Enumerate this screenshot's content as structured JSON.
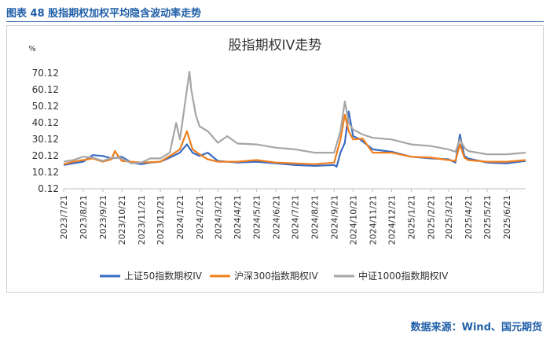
{
  "figure_caption": "图表 48  股指期权加权平均隐含波动率走势",
  "source_note": "数据来源：Wind、国元期货",
  "colors": {
    "caption": "#1f5fa8",
    "frame": "#d0d0d0"
  },
  "chart_data": {
    "type": "line",
    "title": "股指期权IV走势",
    "ylabel": "%",
    "xlabel": "",
    "yticks": [
      "0.12",
      "10.12",
      "20.12",
      "30.12",
      "40.12",
      "50.12",
      "60.12",
      "70.12"
    ],
    "ylim": [
      0.12,
      70.12
    ],
    "xticks": [
      "2023/7/21",
      "2023/8/21",
      "2023/9/21",
      "2023/10/21",
      "2023/11/21",
      "2023/12/21",
      "2024/1/21",
      "2024/2/21",
      "2024/3/21",
      "2024/4/21",
      "2024/5/21",
      "2024/6/21",
      "2024/7/21",
      "2024/8/21",
      "2024/9/21",
      "2024/10/21",
      "2024/11/21",
      "2024/12/21",
      "2025/1/21",
      "2025/2/21",
      "2025/3/21",
      "2025/4/21",
      "2025/5/21",
      "2025/6/21"
    ],
    "grid": false,
    "legend_position": "bottom",
    "series": [
      {
        "name": "上证50指数期权IV",
        "color": "#3a6bc4",
        "points": [
          [
            "2023/7/21",
            14.5
          ],
          [
            "2023/8/5",
            15.5
          ],
          [
            "2023/8/21",
            16.5
          ],
          [
            "2023/9/5",
            20.5
          ],
          [
            "2023/9/21",
            20.0
          ],
          [
            "2023/10/5",
            18.5
          ],
          [
            "2023/10/21",
            19.5
          ],
          [
            "2023/11/5",
            16.0
          ],
          [
            "2023/11/21",
            15.0
          ],
          [
            "2023/12/5",
            16.0
          ],
          [
            "2023/12/21",
            16.5
          ],
          [
            "2024/1/5",
            19.0
          ],
          [
            "2024/1/21",
            22.0
          ],
          [
            "2024/2/1",
            27.0
          ],
          [
            "2024/2/10",
            22.0
          ],
          [
            "2024/2/21",
            20.0
          ],
          [
            "2024/3/5",
            22.0
          ],
          [
            "2024/3/21",
            17.0
          ],
          [
            "2024/4/21",
            16.0
          ],
          [
            "2024/5/21",
            16.5
          ],
          [
            "2024/6/21",
            15.5
          ],
          [
            "2024/7/21",
            14.5
          ],
          [
            "2024/8/21",
            14.0
          ],
          [
            "2024/9/21",
            14.5
          ],
          [
            "2024/9/25",
            13.5
          ],
          [
            "2024/10/1",
            22.0
          ],
          [
            "2024/10/8",
            28.0
          ],
          [
            "2024/10/14",
            47.0
          ],
          [
            "2024/10/21",
            32.0
          ],
          [
            "2024/11/1",
            30.0
          ],
          [
            "2024/11/21",
            24.0
          ],
          [
            "2024/12/21",
            22.5
          ],
          [
            "2025/1/21",
            19.5
          ],
          [
            "2025/2/21",
            18.5
          ],
          [
            "2025/3/21",
            18.0
          ],
          [
            "2025/4/1",
            16.0
          ],
          [
            "2025/4/8",
            33.0
          ],
          [
            "2025/4/15",
            20.0
          ],
          [
            "2025/4/21",
            18.5
          ],
          [
            "2025/5/21",
            16.0
          ],
          [
            "2025/6/21",
            15.5
          ],
          [
            "2025/7/21",
            17.0
          ]
        ]
      },
      {
        "name": "沪深300指数期权IV",
        "color": "#f07f1e",
        "points": [
          [
            "2023/7/21",
            15.0
          ],
          [
            "2023/8/5",
            16.5
          ],
          [
            "2023/8/21",
            17.5
          ],
          [
            "2023/9/5",
            18.5
          ],
          [
            "2023/9/21",
            16.5
          ],
          [
            "2023/10/5",
            18.0
          ],
          [
            "2023/10/10",
            23.0
          ],
          [
            "2023/10/21",
            17.0
          ],
          [
            "2023/11/21",
            16.0
          ],
          [
            "2023/12/21",
            16.5
          ],
          [
            "2024/1/5",
            20.0
          ],
          [
            "2024/1/21",
            24.0
          ],
          [
            "2024/2/1",
            35.0
          ],
          [
            "2024/2/10",
            24.0
          ],
          [
            "2024/2/21",
            21.0
          ],
          [
            "2024/3/5",
            18.0
          ],
          [
            "2024/3/21",
            16.5
          ],
          [
            "2024/4/21",
            16.5
          ],
          [
            "2024/5/21",
            17.5
          ],
          [
            "2024/6/21",
            16.0
          ],
          [
            "2024/7/21",
            15.5
          ],
          [
            "2024/8/21",
            15.0
          ],
          [
            "2024/9/21",
            16.0
          ],
          [
            "2024/10/1",
            30.0
          ],
          [
            "2024/10/8",
            45.0
          ],
          [
            "2024/10/14",
            35.0
          ],
          [
            "2024/10/21",
            30.0
          ],
          [
            "2024/11/5",
            30.5
          ],
          [
            "2024/11/21",
            22.0
          ],
          [
            "2024/12/21",
            22.0
          ],
          [
            "2025/1/21",
            19.5
          ],
          [
            "2025/2/21",
            19.0
          ],
          [
            "2025/3/21",
            17.5
          ],
          [
            "2025/4/1",
            17.0
          ],
          [
            "2025/4/8",
            27.0
          ],
          [
            "2025/4/15",
            19.0
          ],
          [
            "2025/4/21",
            17.5
          ],
          [
            "2025/5/21",
            16.5
          ],
          [
            "2025/6/21",
            16.5
          ],
          [
            "2025/7/21",
            17.5
          ]
        ]
      },
      {
        "name": "中证1000指数期权IV",
        "color": "#a6a6a6",
        "points": [
          [
            "2023/7/21",
            16.5
          ],
          [
            "2023/8/5",
            17.5
          ],
          [
            "2023/8/21",
            19.5
          ],
          [
            "2023/9/5",
            19.0
          ],
          [
            "2023/9/21",
            17.0
          ],
          [
            "2023/10/5",
            19.0
          ],
          [
            "2023/10/21",
            18.5
          ],
          [
            "2023/11/5",
            15.5
          ],
          [
            "2023/11/21",
            16.0
          ],
          [
            "2023/12/5",
            18.5
          ],
          [
            "2023/12/21",
            18.5
          ],
          [
            "2024/1/5",
            22.0
          ],
          [
            "2024/1/15",
            40.0
          ],
          [
            "2024/1/21",
            30.0
          ],
          [
            "2024/2/5",
            71.0
          ],
          [
            "2024/2/8",
            60.0
          ],
          [
            "2024/2/15",
            45.0
          ],
          [
            "2024/2/21",
            38.0
          ],
          [
            "2024/3/5",
            35.0
          ],
          [
            "2024/3/21",
            28.0
          ],
          [
            "2024/4/5",
            32.0
          ],
          [
            "2024/4/21",
            27.5
          ],
          [
            "2024/5/21",
            27.0
          ],
          [
            "2024/6/21",
            25.0
          ],
          [
            "2024/7/21",
            24.0
          ],
          [
            "2024/8/21",
            22.0
          ],
          [
            "2024/9/21",
            22.0
          ],
          [
            "2024/10/1",
            35.0
          ],
          [
            "2024/10/8",
            53.0
          ],
          [
            "2024/10/14",
            40.0
          ],
          [
            "2024/10/21",
            36.0
          ],
          [
            "2024/11/5",
            33.0
          ],
          [
            "2024/11/21",
            31.0
          ],
          [
            "2024/12/21",
            30.0
          ],
          [
            "2025/1/21",
            27.0
          ],
          [
            "2025/2/21",
            26.0
          ],
          [
            "2025/3/21",
            24.0
          ],
          [
            "2025/4/1",
            22.5
          ],
          [
            "2025/4/8",
            30.0
          ],
          [
            "2025/4/15",
            25.0
          ],
          [
            "2025/4/21",
            23.0
          ],
          [
            "2025/5/21",
            21.0
          ],
          [
            "2025/6/21",
            21.0
          ],
          [
            "2025/7/21",
            22.0
          ]
        ]
      }
    ]
  }
}
